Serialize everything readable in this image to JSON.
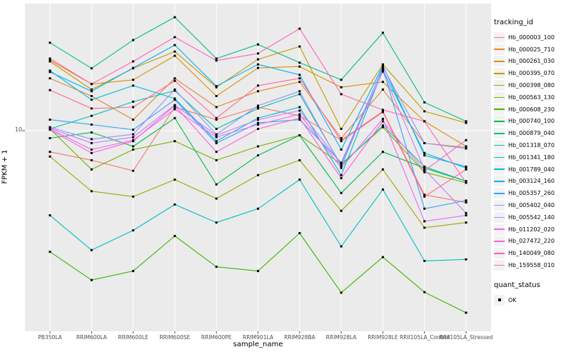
{
  "figure": {
    "panel_bg": "#EBEBEB",
    "grid_color": "#FFFFFF",
    "point_color": "#000000",
    "tick_text_color": "#4D4D4D",
    "legend_key_bg": "#F2F2F2"
  },
  "axes": {
    "x_title": "sample_name",
    "y_title": "FPKM + 1",
    "y_tick_label": "10"
  },
  "legend": {
    "tracking_title": "tracking_id",
    "quant_title": "quant_status",
    "quant_label": "OK"
  },
  "chart_data": {
    "type": "line",
    "title": "",
    "xlabel": "sample_name",
    "ylabel": "FPKM + 1",
    "y_scale": "log10",
    "y_ticks": [
      10
    ],
    "ylim": [
      1.25,
      40
    ],
    "grid": "vertical-major-and-y10",
    "legend_position": "right",
    "point_shape": "filled-square",
    "quant_status": "OK",
    "categories": [
      "PB350LA",
      "RRIM600LA",
      "RRIM600LE",
      "RRIM600SE",
      "RRIM600PE",
      "RRIM901LA",
      "RRIM928BA",
      "RRIM928LA",
      "RRIM928LE",
      "RRII105LA_Control",
      "RRII105LA_Stressed"
    ],
    "series": [
      {
        "name": "Hb_000003_100",
        "color": "#F8766D",
        "values": [
          7.9,
          7.2,
          6.4,
          13.0,
          11.3,
          13.0,
          11.8,
          9.0,
          12.4,
          4.9,
          4.5
        ]
      },
      {
        "name": "Hb_000025_710",
        "color": "#EA8331",
        "values": [
          17.9,
          14.7,
          11.3,
          17.9,
          13.0,
          15.5,
          17.2,
          9.2,
          15.8,
          8.7,
          8.3
        ]
      },
      {
        "name": "Hb_000261_030",
        "color": "#D89000",
        "values": [
          21.9,
          16.8,
          17.6,
          23.0,
          14.7,
          20.1,
          20.4,
          16.2,
          17.2,
          11.1,
          8.4
        ]
      },
      {
        "name": "Hb_000395_070",
        "color": "#C09B00",
        "values": [
          21.6,
          15.8,
          20.0,
          24.1,
          16.2,
          22.1,
          25.5,
          10.2,
          20.9,
          12.4,
          10.9
        ]
      },
      {
        "name": "Hb_000398_080",
        "color": "#A3A500",
        "values": [
          7.5,
          5.1,
          4.8,
          5.8,
          4.7,
          6.1,
          7.2,
          4.1,
          6.5,
          3.4,
          3.6
        ]
      },
      {
        "name": "Hb_000563_130",
        "color": "#7CAE00",
        "values": [
          10.2,
          6.5,
          8.1,
          8.9,
          7.2,
          8.4,
          9.5,
          6.9,
          10.4,
          6.3,
          5.6
        ]
      },
      {
        "name": "Hb_000608_230",
        "color": "#39B600",
        "values": [
          2.6,
          1.9,
          2.1,
          3.1,
          2.2,
          2.1,
          3.2,
          1.65,
          2.45,
          1.66,
          1.32
        ]
      },
      {
        "name": "Hb_000740_100",
        "color": "#00BB4E",
        "values": [
          9.2,
          9.8,
          8.4,
          11.5,
          5.5,
          7.6,
          9.5,
          5.0,
          7.9,
          6.6,
          5.7
        ]
      },
      {
        "name": "Hb_000879_040",
        "color": "#00BF7D",
        "values": [
          26.6,
          20.0,
          27.4,
          35.3,
          22.3,
          26.1,
          21.3,
          17.6,
          29.7,
          13.7,
          11.1
        ]
      },
      {
        "name": "Hb_001318_070",
        "color": "#00C1A3",
        "values": [
          10.2,
          11.8,
          13.8,
          15.6,
          10.2,
          12.8,
          15.0,
          6.8,
          10.6,
          6.7,
          5.7
        ]
      },
      {
        "name": "Hb_001341_180",
        "color": "#00BFC4",
        "values": [
          3.9,
          2.65,
          3.3,
          4.4,
          3.6,
          4.2,
          5.8,
          2.76,
          5.2,
          2.35,
          2.39
        ]
      },
      {
        "name": "Hb_001789_040",
        "color": "#00BAE0",
        "values": [
          19.5,
          14.1,
          16.5,
          14.3,
          8.9,
          11.5,
          13.0,
          6.1,
          19.6,
          7.8,
          6.6
        ]
      },
      {
        "name": "Hb_003124_160",
        "color": "#00B0F6",
        "values": [
          19.2,
          15.5,
          20.1,
          25.9,
          16.4,
          20.9,
          18.6,
          8.1,
          20.6,
          7.6,
          6.7
        ]
      },
      {
        "name": "Hb_005357_260",
        "color": "#35A2FF",
        "values": [
          11.3,
          10.7,
          10.1,
          14.1,
          8.7,
          10.9,
          11.3,
          7.0,
          20.0,
          4.2,
          4.6
        ]
      },
      {
        "name": "Hb_005402_040",
        "color": "#9590FF",
        "values": [
          10.4,
          9.1,
          9.6,
          15.8,
          9.6,
          13.2,
          15.5,
          6.7,
          20.3,
          8.7,
          8.2
        ]
      },
      {
        "name": "Hb_005542_140",
        "color": "#C77CFF",
        "values": [
          10.3,
          8.7,
          9.3,
          13.3,
          9.5,
          11.3,
          12.5,
          6.9,
          19.3,
          6.5,
          4.0
        ]
      },
      {
        "name": "Hb_011202_020",
        "color": "#E76BF3",
        "values": [
          10.2,
          8.1,
          9.0,
          12.7,
          9.3,
          10.7,
          12.0,
          6.6,
          11.4,
          3.65,
          3.9
        ]
      },
      {
        "name": "Hb_027472_220",
        "color": "#FA62DB",
        "values": [
          10.1,
          7.8,
          8.9,
          13.2,
          7.9,
          10.2,
          11.5,
          5.9,
          11.1,
          6.4,
          9.0
        ]
      },
      {
        "name": "Hb_140049_080",
        "color": "#FF62BC",
        "values": [
          22.3,
          16.8,
          21.6,
          28.3,
          21.8,
          23.6,
          31.1,
          15.0,
          12.6,
          11.1,
          5.6
        ]
      },
      {
        "name": "Hb_159558_010",
        "color": "#FF6A98",
        "values": [
          15.7,
          12.8,
          13.0,
          17.4,
          11.5,
          16.5,
          17.9,
          8.9,
          12.3,
          4.8,
          6.5
        ]
      }
    ]
  }
}
